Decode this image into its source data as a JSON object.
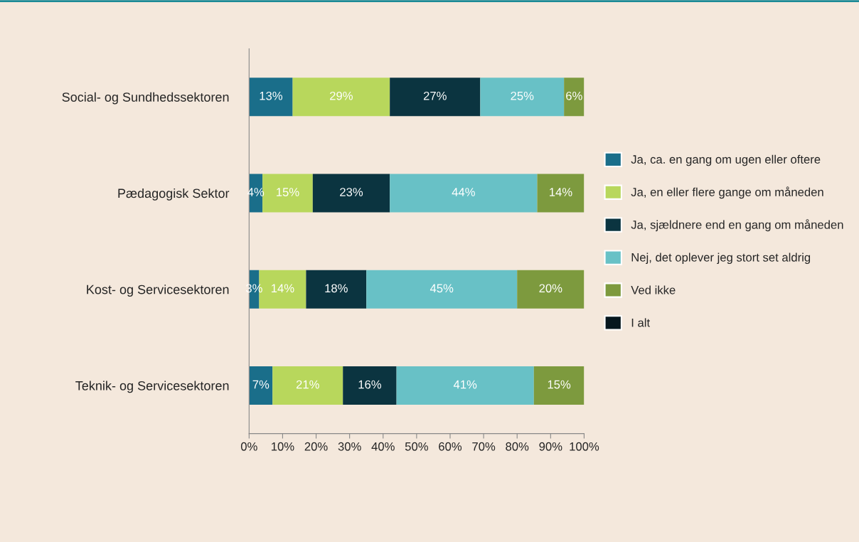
{
  "chart_data": {
    "type": "bar",
    "orientation": "horizontal",
    "stacked": true,
    "grid": false,
    "legend": "right",
    "categories": [
      "Social- og Sundhedssektoren",
      "Pædagogisk Sektor",
      "Kost- og Servicesektoren",
      "Teknik- og Servicesektoren"
    ],
    "series": [
      {
        "name": "Ja, ca. en gang om ugen eller oftere",
        "color": "#1a6e8a",
        "values": [
          13,
          4,
          3,
          7
        ],
        "value_labels": [
          "13%",
          "4%",
          "3%",
          "7%"
        ]
      },
      {
        "name": "Ja, en eller flere gange om måneden",
        "color": "#b8d75c",
        "values": [
          29,
          15,
          14,
          21
        ],
        "value_labels": [
          "29%",
          "15%",
          "14%",
          "21%"
        ]
      },
      {
        "name": "Ja, sjældnere end en gang om måneden",
        "color": "#0b3440",
        "values": [
          27,
          23,
          18,
          16
        ],
        "value_labels": [
          "27%",
          "23%",
          "18%",
          "16%"
        ]
      },
      {
        "name": "Nej, det oplever jeg stort set aldrig",
        "color": "#68c1c6",
        "values": [
          25,
          44,
          45,
          41
        ],
        "value_labels": [
          "25%",
          "44%",
          "45%",
          "41%"
        ]
      },
      {
        "name": "Ved ikke",
        "color": "#7d9a3e",
        "values": [
          6,
          14,
          20,
          15
        ],
        "value_labels": [
          "6%",
          "14%",
          "20%",
          "15%"
        ]
      },
      {
        "name": "I alt",
        "color": "#06171e",
        "values": [
          null,
          null,
          null,
          null
        ]
      }
    ],
    "xlim": [
      0,
      100
    ],
    "xticks": [
      {
        "value": 0,
        "label": "0%"
      },
      {
        "value": 10,
        "label": "10%"
      },
      {
        "value": 20,
        "label": "20%"
      },
      {
        "value": 30,
        "label": "30%"
      },
      {
        "value": 40,
        "label": "40%"
      },
      {
        "value": 50,
        "label": "50%"
      },
      {
        "value": 60,
        "label": "60%"
      },
      {
        "value": 70,
        "label": "70%"
      },
      {
        "value": 80,
        "label": "80%"
      },
      {
        "value": 90,
        "label": "90%"
      },
      {
        "value": 100,
        "label": "100%"
      }
    ]
  }
}
